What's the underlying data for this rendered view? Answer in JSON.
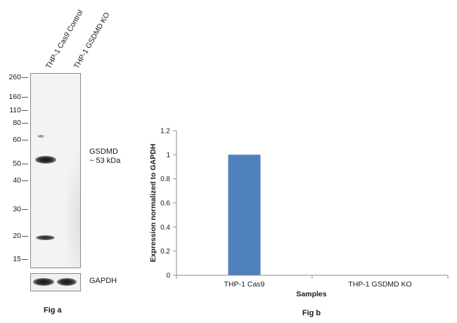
{
  "blot": {
    "lanes": [
      "THP-1 Cas9 Control",
      "THP-1 GSDMD KO"
    ],
    "markers": [
      "260",
      "160",
      "110",
      "80",
      "60",
      "50",
      "40",
      "30",
      "20",
      "15"
    ],
    "band_label_line1": "GSDMD",
    "band_label_line2": "~ 53 kDa",
    "loading_label": "GAPDH",
    "figure_label": "Fig a"
  },
  "chart": {
    "figure_label": "Fig b"
  },
  "chart_data": {
    "type": "bar",
    "categories": [
      "THP-1 Cas9",
      "THP-1 GSDMD KO"
    ],
    "values": [
      1,
      0
    ],
    "title": "",
    "xlabel": "Samples",
    "ylabel": "Expression  normalized to GAPDH",
    "ylim": [
      0,
      1.2
    ],
    "yticks": [
      "0",
      "0.2",
      "0.4",
      "0.6",
      "0.8",
      "1",
      "1.2"
    ],
    "grid": false,
    "bar_color": "#4f81bd"
  }
}
